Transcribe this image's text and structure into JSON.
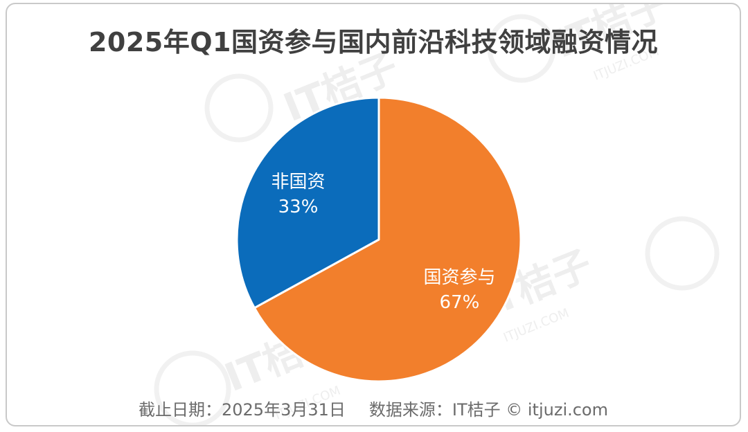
{
  "chart_data": {
    "type": "pie",
    "title": "2025年Q1国资参与国内前沿科技领域融资情况",
    "slices": [
      {
        "label": "国资参与",
        "value": 67,
        "display": "67%",
        "color": "#F27F2C"
      },
      {
        "label": "非国资",
        "value": 33,
        "display": "33%",
        "color": "#0B6CBB"
      }
    ]
  },
  "footer": {
    "date_text": "截止日期：2025年3月31日",
    "source_text": "数据来源：IT桔子 © itjuzi.com"
  },
  "watermark": {
    "brand": "IT桔子",
    "domain": "ITJUZI.COM"
  }
}
